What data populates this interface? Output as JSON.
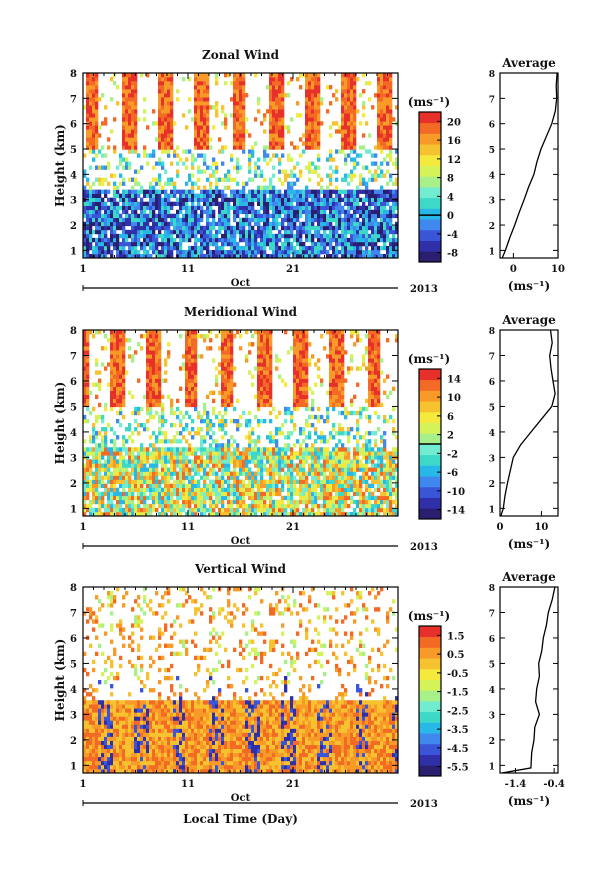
{
  "chart_data": [
    {
      "type": "heatmap",
      "title": "Zonal Wind",
      "xlabel": "",
      "ylabel": "Height (km)",
      "x_ticks": [
        "1",
        "11",
        "21"
      ],
      "x_month": "Oct",
      "x_year": "2013",
      "xlim": [
        1,
        31
      ],
      "y_ticks": [
        "1",
        "2",
        "3",
        "4",
        "5",
        "6",
        "7",
        "8"
      ],
      "ylim": [
        0.7,
        8
      ],
      "colorbar": {
        "unit": "(ms⁻¹)",
        "ticks": [
          "20",
          "16",
          "12",
          "8",
          "4",
          "0",
          "-4",
          "-8"
        ],
        "range": [
          -10,
          22
        ]
      },
      "average": {
        "title": "Average",
        "xlabel": "(ms⁻¹)",
        "x_ticks": [
          "0",
          "10"
        ],
        "xlim": [
          -3,
          10
        ],
        "y_ticks": [
          "1",
          "2",
          "3",
          "4",
          "5",
          "6",
          "7",
          "8"
        ],
        "ylim": [
          0.7,
          8
        ],
        "profile": [
          {
            "height": 0.7,
            "value": -2.5
          },
          {
            "height": 1.0,
            "value": -1.8
          },
          {
            "height": 1.5,
            "value": -0.8
          },
          {
            "height": 2.0,
            "value": 0.3
          },
          {
            "height": 2.5,
            "value": 1.3
          },
          {
            "height": 3.0,
            "value": 2.4
          },
          {
            "height": 3.5,
            "value": 3.4
          },
          {
            "height": 4.0,
            "value": 4.6
          },
          {
            "height": 4.5,
            "value": 5.3
          },
          {
            "height": 5.0,
            "value": 6.2
          },
          {
            "height": 5.5,
            "value": 7.4
          },
          {
            "height": 6.0,
            "value": 8.6
          },
          {
            "height": 6.5,
            "value": 9.4
          },
          {
            "height": 7.0,
            "value": 9.7
          },
          {
            "height": 7.5,
            "value": 9.6
          },
          {
            "height": 8.0,
            "value": 9.8
          }
        ]
      }
    },
    {
      "type": "heatmap",
      "title": "Meridional Wind",
      "xlabel": "",
      "ylabel": "Height (km)",
      "x_ticks": [
        "1",
        "11",
        "21"
      ],
      "x_month": "Oct",
      "x_year": "2013",
      "xlim": [
        1,
        31
      ],
      "y_ticks": [
        "1",
        "2",
        "3",
        "4",
        "5",
        "6",
        "7",
        "8"
      ],
      "ylim": [
        0.7,
        8
      ],
      "colorbar": {
        "unit": "(ms⁻¹)",
        "ticks": [
          "14",
          "10",
          "6",
          "2",
          "-2",
          "-6",
          "-10",
          "-14"
        ],
        "range": [
          -16,
          16
        ]
      },
      "average": {
        "title": "Average",
        "xlabel": "(ms⁻¹)",
        "x_ticks": [
          "0",
          "10"
        ],
        "xlim": [
          0,
          14
        ],
        "y_ticks": [
          "1",
          "2",
          "3",
          "4",
          "5",
          "6",
          "7",
          "8"
        ],
        "ylim": [
          0.7,
          8
        ],
        "profile": [
          {
            "height": 0.7,
            "value": 0.2
          },
          {
            "height": 1.0,
            "value": 0.8
          },
          {
            "height": 1.5,
            "value": 1.2
          },
          {
            "height": 2.0,
            "value": 1.8
          },
          {
            "height": 2.5,
            "value": 2.5
          },
          {
            "height": 3.0,
            "value": 3.2
          },
          {
            "height": 3.5,
            "value": 5.0
          },
          {
            "height": 4.0,
            "value": 7.5
          },
          {
            "height": 4.5,
            "value": 10.0
          },
          {
            "height": 5.0,
            "value": 12.5
          },
          {
            "height": 5.5,
            "value": 13.3
          },
          {
            "height": 6.0,
            "value": 12.8
          },
          {
            "height": 6.5,
            "value": 12.3
          },
          {
            "height": 7.0,
            "value": 12.0
          },
          {
            "height": 7.5,
            "value": 12.6
          },
          {
            "height": 8.0,
            "value": 12.2
          }
        ]
      }
    },
    {
      "type": "heatmap",
      "title": "Vertical Wind",
      "xlabel": "Local Time (Day)",
      "ylabel": "Height (km)",
      "x_ticks": [
        "1",
        "11",
        "21"
      ],
      "x_month": "Oct",
      "x_year": "2013",
      "xlim": [
        1,
        31
      ],
      "y_ticks": [
        "1",
        "2",
        "3",
        "4",
        "5",
        "6",
        "7",
        "8"
      ],
      "ylim": [
        0.7,
        8
      ],
      "colorbar": {
        "unit": "(ms⁻¹)",
        "ticks": [
          "1.5",
          "0.5",
          "-0.5",
          "-1.5",
          "-2.5",
          "-3.5",
          "-4.5",
          "-5.5"
        ],
        "range": [
          -6,
          2
        ]
      },
      "average": {
        "title": "Average",
        "xlabel": "(ms⁻¹)",
        "x_ticks": [
          "-1.4",
          "-0.4"
        ],
        "xlim": [
          -1.8,
          -0.3
        ],
        "y_ticks": [
          "1",
          "2",
          "3",
          "4",
          "5",
          "6",
          "7",
          "8"
        ],
        "ylim": [
          0.7,
          8
        ],
        "profile": [
          {
            "height": 0.7,
            "value": -1.75
          },
          {
            "height": 0.9,
            "value": -1.0
          },
          {
            "height": 1.5,
            "value": -0.98
          },
          {
            "height": 2.0,
            "value": -0.92
          },
          {
            "height": 2.5,
            "value": -0.9
          },
          {
            "height": 3.0,
            "value": -0.78
          },
          {
            "height": 3.5,
            "value": -0.88
          },
          {
            "height": 4.0,
            "value": -0.85
          },
          {
            "height": 4.5,
            "value": -0.78
          },
          {
            "height": 5.0,
            "value": -0.8
          },
          {
            "height": 5.5,
            "value": -0.72
          },
          {
            "height": 6.0,
            "value": -0.68
          },
          {
            "height": 6.5,
            "value": -0.6
          },
          {
            "height": 7.0,
            "value": -0.55
          },
          {
            "height": 7.5,
            "value": -0.45
          },
          {
            "height": 8.0,
            "value": -0.38
          }
        ]
      }
    }
  ]
}
